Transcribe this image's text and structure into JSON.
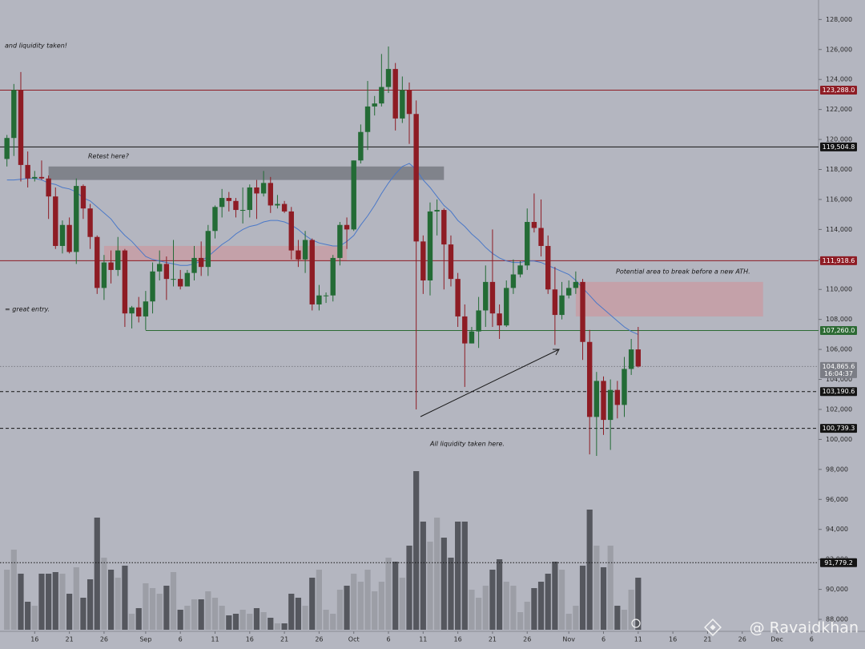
{
  "chart_data": {
    "type": "candlestick",
    "x": [
      "08-12",
      "08-13",
      "08-14",
      "08-15",
      "08-16",
      "08-17",
      "08-18",
      "08-19",
      "08-20",
      "08-21",
      "08-22",
      "08-23",
      "08-24",
      "08-25",
      "08-26",
      "08-27",
      "08-28",
      "08-29",
      "08-30",
      "08-31",
      "09-01",
      "09-02",
      "09-03",
      "09-04",
      "09-05",
      "09-06",
      "09-07",
      "09-08",
      "09-09",
      "09-10",
      "09-11",
      "09-12",
      "09-13",
      "09-14",
      "09-15",
      "09-16",
      "09-17",
      "09-18",
      "09-19",
      "09-20",
      "09-21",
      "09-22",
      "09-23",
      "09-24",
      "09-25",
      "09-26",
      "09-27",
      "09-28",
      "09-29",
      "09-30",
      "10-01",
      "10-02",
      "10-03",
      "10-04",
      "10-05",
      "10-06",
      "10-07",
      "10-08",
      "10-09",
      "10-10",
      "10-11",
      "10-12",
      "10-13",
      "10-14",
      "10-15",
      "10-16",
      "10-17",
      "10-18",
      "10-19",
      "10-20",
      "10-21",
      "10-22",
      "10-23",
      "10-24",
      "10-25",
      "10-26",
      "10-27",
      "10-28",
      "10-29",
      "10-30",
      "10-31",
      "11-01",
      "11-02",
      "11-03",
      "11-04",
      "11-05",
      "11-06",
      "11-07",
      "11-08",
      "11-09",
      "11-10",
      "11-11"
    ],
    "candles": [
      [
        118700,
        120300,
        118200,
        120100
      ],
      [
        120100,
        123700,
        118900,
        123300
      ],
      [
        123300,
        124500,
        117200,
        118300
      ],
      [
        118300,
        119200,
        116800,
        117400
      ],
      [
        117400,
        117900,
        117200,
        117500
      ],
      [
        117500,
        118600,
        117300,
        117400
      ],
      [
        117400,
        117600,
        114700,
        116200
      ],
      [
        116200,
        116800,
        112700,
        112900
      ],
      [
        112900,
        114600,
        112400,
        114300
      ],
      [
        114300,
        114800,
        112400,
        112500
      ],
      [
        112500,
        117400,
        111700,
        116900
      ],
      [
        116900,
        117000,
        114700,
        115400
      ],
      [
        115400,
        115700,
        112700,
        113500
      ],
      [
        113500,
        113600,
        109700,
        110100
      ],
      [
        110100,
        112300,
        109300,
        111800
      ],
      [
        111800,
        112600,
        110400,
        111300
      ],
      [
        111300,
        113500,
        110900,
        112600
      ],
      [
        112600,
        112700,
        107500,
        108400
      ],
      [
        108400,
        108900,
        107400,
        108800
      ],
      [
        108800,
        109500,
        107800,
        108200
      ],
      [
        108200,
        109900,
        107300,
        109200
      ],
      [
        109200,
        111800,
        108400,
        111200
      ],
      [
        111200,
        112600,
        110600,
        111700
      ],
      [
        111700,
        112200,
        109300,
        110700
      ],
      [
        110700,
        113300,
        110200,
        110700
      ],
      [
        110700,
        111300,
        110000,
        110200
      ],
      [
        110200,
        111300,
        110200,
        111100
      ],
      [
        111100,
        112900,
        110600,
        112100
      ],
      [
        112100,
        113200,
        110900,
        111500
      ],
      [
        111500,
        114300,
        110900,
        113900
      ],
      [
        113900,
        115600,
        113400,
        115500
      ],
      [
        115500,
        116700,
        114800,
        116100
      ],
      [
        116100,
        116500,
        115200,
        115900
      ],
      [
        115900,
        116100,
        114800,
        115300
      ],
      [
        115300,
        116800,
        114400,
        115300
      ],
      [
        115300,
        117000,
        114800,
        116800
      ],
      [
        116800,
        117300,
        114700,
        116400
      ],
      [
        116400,
        117900,
        116200,
        117100
      ],
      [
        117100,
        117500,
        115100,
        115600
      ],
      [
        115600,
        116300,
        115400,
        115700
      ],
      [
        115700,
        115900,
        115100,
        115200
      ],
      [
        115200,
        115500,
        112000,
        112600
      ],
      [
        112600,
        113300,
        111500,
        112000
      ],
      [
        112000,
        113900,
        111100,
        113300
      ],
      [
        113300,
        113400,
        108600,
        109000
      ],
      [
        109000,
        110300,
        108600,
        109600
      ],
      [
        109600,
        109800,
        109100,
        109600
      ],
      [
        109600,
        112300,
        109200,
        112100
      ],
      [
        112100,
        114500,
        111600,
        114300
      ],
      [
        114300,
        114800,
        112700,
        114000
      ],
      [
        114000,
        118600,
        113900,
        118600
      ],
      [
        118600,
        121000,
        118400,
        120500
      ],
      [
        120500,
        123900,
        119300,
        122200
      ],
      [
        122200,
        122900,
        121600,
        122400
      ],
      [
        122400,
        125700,
        122200,
        123500
      ],
      [
        123500,
        126200,
        123100,
        124700
      ],
      [
        124700,
        125100,
        120600,
        121400
      ],
      [
        121400,
        124200,
        121100,
        123300
      ],
      [
        123300,
        123800,
        119700,
        121700
      ],
      [
        121700,
        122600,
        102000,
        113200
      ],
      [
        113200,
        113600,
        109700,
        110600
      ],
      [
        110600,
        115800,
        109600,
        115200
      ],
      [
        115200,
        116000,
        113600,
        115300
      ],
      [
        115300,
        115400,
        110000,
        113000
      ],
      [
        113000,
        113600,
        110200,
        110700
      ],
      [
        110700,
        111100,
        107500,
        108200
      ],
      [
        108200,
        109000,
        103500,
        106400
      ],
      [
        106400,
        107500,
        106400,
        107200
      ],
      [
        107200,
        109500,
        106100,
        108600
      ],
      [
        108600,
        111600,
        107500,
        110500
      ],
      [
        110500,
        114000,
        107500,
        108400
      ],
      [
        108400,
        109000,
        106700,
        107600
      ],
      [
        107600,
        110600,
        107500,
        110100
      ],
      [
        110100,
        112000,
        109700,
        111000
      ],
      [
        111000,
        111900,
        110800,
        111600
      ],
      [
        111600,
        115400,
        111300,
        114500
      ],
      [
        114500,
        116400,
        113800,
        114100
      ],
      [
        114100,
        116000,
        112200,
        112900
      ],
      [
        112900,
        113600,
        109700,
        110000
      ],
      [
        110000,
        111500,
        106300,
        108300
      ],
      [
        108300,
        110500,
        108000,
        109600
      ],
      [
        109600,
        110600,
        109400,
        110100
      ],
      [
        110100,
        111200,
        109700,
        110500
      ],
      [
        110500,
        110700,
        105300,
        106500
      ],
      [
        106500,
        107300,
        99000,
        101500
      ],
      [
        101500,
        104500,
        98900,
        103900
      ],
      [
        103900,
        104200,
        100300,
        101300
      ],
      [
        101300,
        104000,
        99300,
        103300
      ],
      [
        103300,
        103900,
        101400,
        102300
      ],
      [
        102300,
        105500,
        101500,
        104700
      ],
      [
        104700,
        106700,
        104300,
        106000
      ],
      [
        106000,
        107500,
        104800,
        104865.6
      ]
    ],
    "volume": [
      75,
      100,
      70,
      35,
      30,
      70,
      70,
      72,
      70,
      45,
      78,
      40,
      63,
      140,
      90,
      75,
      65,
      80,
      20,
      27,
      58,
      52,
      45,
      55,
      72,
      25,
      30,
      38,
      38,
      48,
      40,
      30,
      18,
      20,
      25,
      20,
      27,
      22,
      15,
      8,
      8,
      45,
      40,
      30,
      65,
      75,
      25,
      20,
      50,
      55,
      70,
      60,
      75,
      48,
      60,
      90,
      85,
      65,
      105,
      198,
      135,
      110,
      140,
      115,
      90,
      135,
      135,
      50,
      40,
      55,
      75,
      88,
      60,
      55,
      22,
      35,
      52,
      60,
      70,
      85,
      75,
      20,
      30,
      80,
      150,
      105,
      78,
      105,
      30,
      25,
      50,
      65
    ],
    "ma": [
      117300,
      117300,
      117350,
      117400,
      117400,
      117300,
      117100,
      117000,
      116800,
      116700,
      116500,
      116100,
      115900,
      115500,
      115100,
      114700,
      114100,
      113600,
      113200,
      112700,
      112200,
      112000,
      111900,
      111800,
      111700,
      111600,
      111600,
      111700,
      111900,
      112200,
      112600,
      113000,
      113300,
      113700,
      114000,
      114200,
      114300,
      114500,
      114600,
      114600,
      114500,
      114300,
      114000,
      113600,
      113300,
      113100,
      113000,
      112900,
      112900,
      113200,
      113600,
      114300,
      114900,
      115600,
      116400,
      117100,
      117700,
      118200,
      118400,
      118000,
      117300,
      116800,
      116200,
      115600,
      115200,
      114600,
      114200,
      113700,
      113300,
      112800,
      112400,
      112100,
      111900,
      111800,
      111800,
      111900,
      111900,
      111800,
      111600,
      111400,
      111200,
      111000,
      110600,
      110100,
      109600,
      109100,
      108700,
      108300,
      107900,
      107500,
      107200,
      107000
    ],
    "up_color": "#236b35",
    "down_color": "#8e1c24",
    "ma_color": "#4a78c8",
    "up_volume_color": "#9c9ea6",
    "down_volume_color": "#55575e",
    "xlim": [
      "08-11",
      "12-07"
    ],
    "xticks": [
      {
        "value": "08-16",
        "label": "16"
      },
      {
        "value": "08-21",
        "label": "21"
      },
      {
        "value": "08-26",
        "label": "26"
      },
      {
        "value": "09-01",
        "label": "Sep"
      },
      {
        "value": "09-06",
        "label": "6"
      },
      {
        "value": "09-11",
        "label": "11"
      },
      {
        "value": "09-16",
        "label": "16"
      },
      {
        "value": "09-21",
        "label": "21"
      },
      {
        "value": "09-26",
        "label": "26"
      },
      {
        "value": "10-01",
        "label": "Oct"
      },
      {
        "value": "10-06",
        "label": "6"
      },
      {
        "value": "10-11",
        "label": "11"
      },
      {
        "value": "10-16",
        "label": "16"
      },
      {
        "value": "10-21",
        "label": "21"
      },
      {
        "value": "10-26",
        "label": "26"
      },
      {
        "value": "11-01",
        "label": "Nov"
      },
      {
        "value": "11-06",
        "label": "6"
      },
      {
        "value": "11-11",
        "label": "11"
      },
      {
        "value": "11-16",
        "label": "16"
      },
      {
        "value": "11-21",
        "label": "21"
      },
      {
        "value": "11-26",
        "label": "26"
      },
      {
        "value": "12-01",
        "label": "Dec"
      },
      {
        "value": "12-06",
        "label": "6"
      }
    ],
    "ylim": [
      87200,
      129300
    ],
    "yticks": [
      {
        "value": 88000,
        "label": "88,000"
      },
      {
        "value": 90000,
        "label": "90,000"
      },
      {
        "value": 92000,
        "label": "92,000"
      },
      {
        "value": 94000,
        "label": "94,000"
      },
      {
        "value": 96000,
        "label": "96,000"
      },
      {
        "value": 98000,
        "label": "98,000"
      },
      {
        "value": 100000,
        "label": "100,000"
      },
      {
        "value": 102000,
        "label": "102,000"
      },
      {
        "value": 104000,
        "label": "104,000"
      },
      {
        "value": 106000,
        "label": "106,000"
      },
      {
        "value": 108000,
        "label": "108,000"
      },
      {
        "value": 110000,
        "label": "110,000"
      },
      {
        "value": 112000,
        "label": "112,000"
      },
      {
        "value": 114000,
        "label": "114,000"
      },
      {
        "value": 116000,
        "label": "116,000"
      },
      {
        "value": 118000,
        "label": "118,000"
      },
      {
        "value": 120000,
        "label": "120,000"
      },
      {
        "value": 122000,
        "label": "122,000"
      },
      {
        "value": 124000,
        "label": "124,000"
      },
      {
        "value": 126000,
        "label": "126,000"
      },
      {
        "value": 128000,
        "label": "128,000"
      }
    ],
    "levels": [
      {
        "value": 123288.0,
        "label": "123,288.0",
        "color": "#8e1c24",
        "style": "solid"
      },
      {
        "value": 119504.8,
        "label": "119,504.8",
        "color": "#141414",
        "style": "solid"
      },
      {
        "value": 111918.6,
        "label": "111,918.6",
        "color": "#8e1c24",
        "style": "solid"
      },
      {
        "value": 107260.0,
        "label": "107,260.0",
        "color": "#2c6a33",
        "style": "solid",
        "from": "09-01"
      },
      {
        "value": 104865.6,
        "label": "104,865.6",
        "color": "#7b7d85",
        "style": "dotted",
        "countdown": "16:04:37"
      },
      {
        "value": 103190.6,
        "label": "103,190.6",
        "color": "#141414",
        "style": "dashed"
      },
      {
        "value": 100739.3,
        "label": "100,739.3",
        "color": "#141414",
        "style": "dashed"
      },
      {
        "value": 91779.2,
        "label": "91,779.2",
        "color": "#141414",
        "style": "dotted"
      }
    ],
    "zones": [
      {
        "from": "08-18",
        "to": "10-14",
        "low": 117300,
        "high": 118200,
        "color": "#6f7179"
      },
      {
        "from": "08-26",
        "to": "09-30",
        "low": 111900,
        "high": 112900,
        "color": "#c99aa2"
      },
      {
        "from": "11-02",
        "to": "11-29",
        "low": 108200,
        "high": 110500,
        "color": "#c99aa2"
      }
    ],
    "annotations": [
      "and liquidity taken!",
      "Retest here?",
      "= great entry.",
      "Potential area to break before a new ATH.",
      "All liquidity taken here."
    ],
    "watermark": "@ Ravaidkhan"
  }
}
